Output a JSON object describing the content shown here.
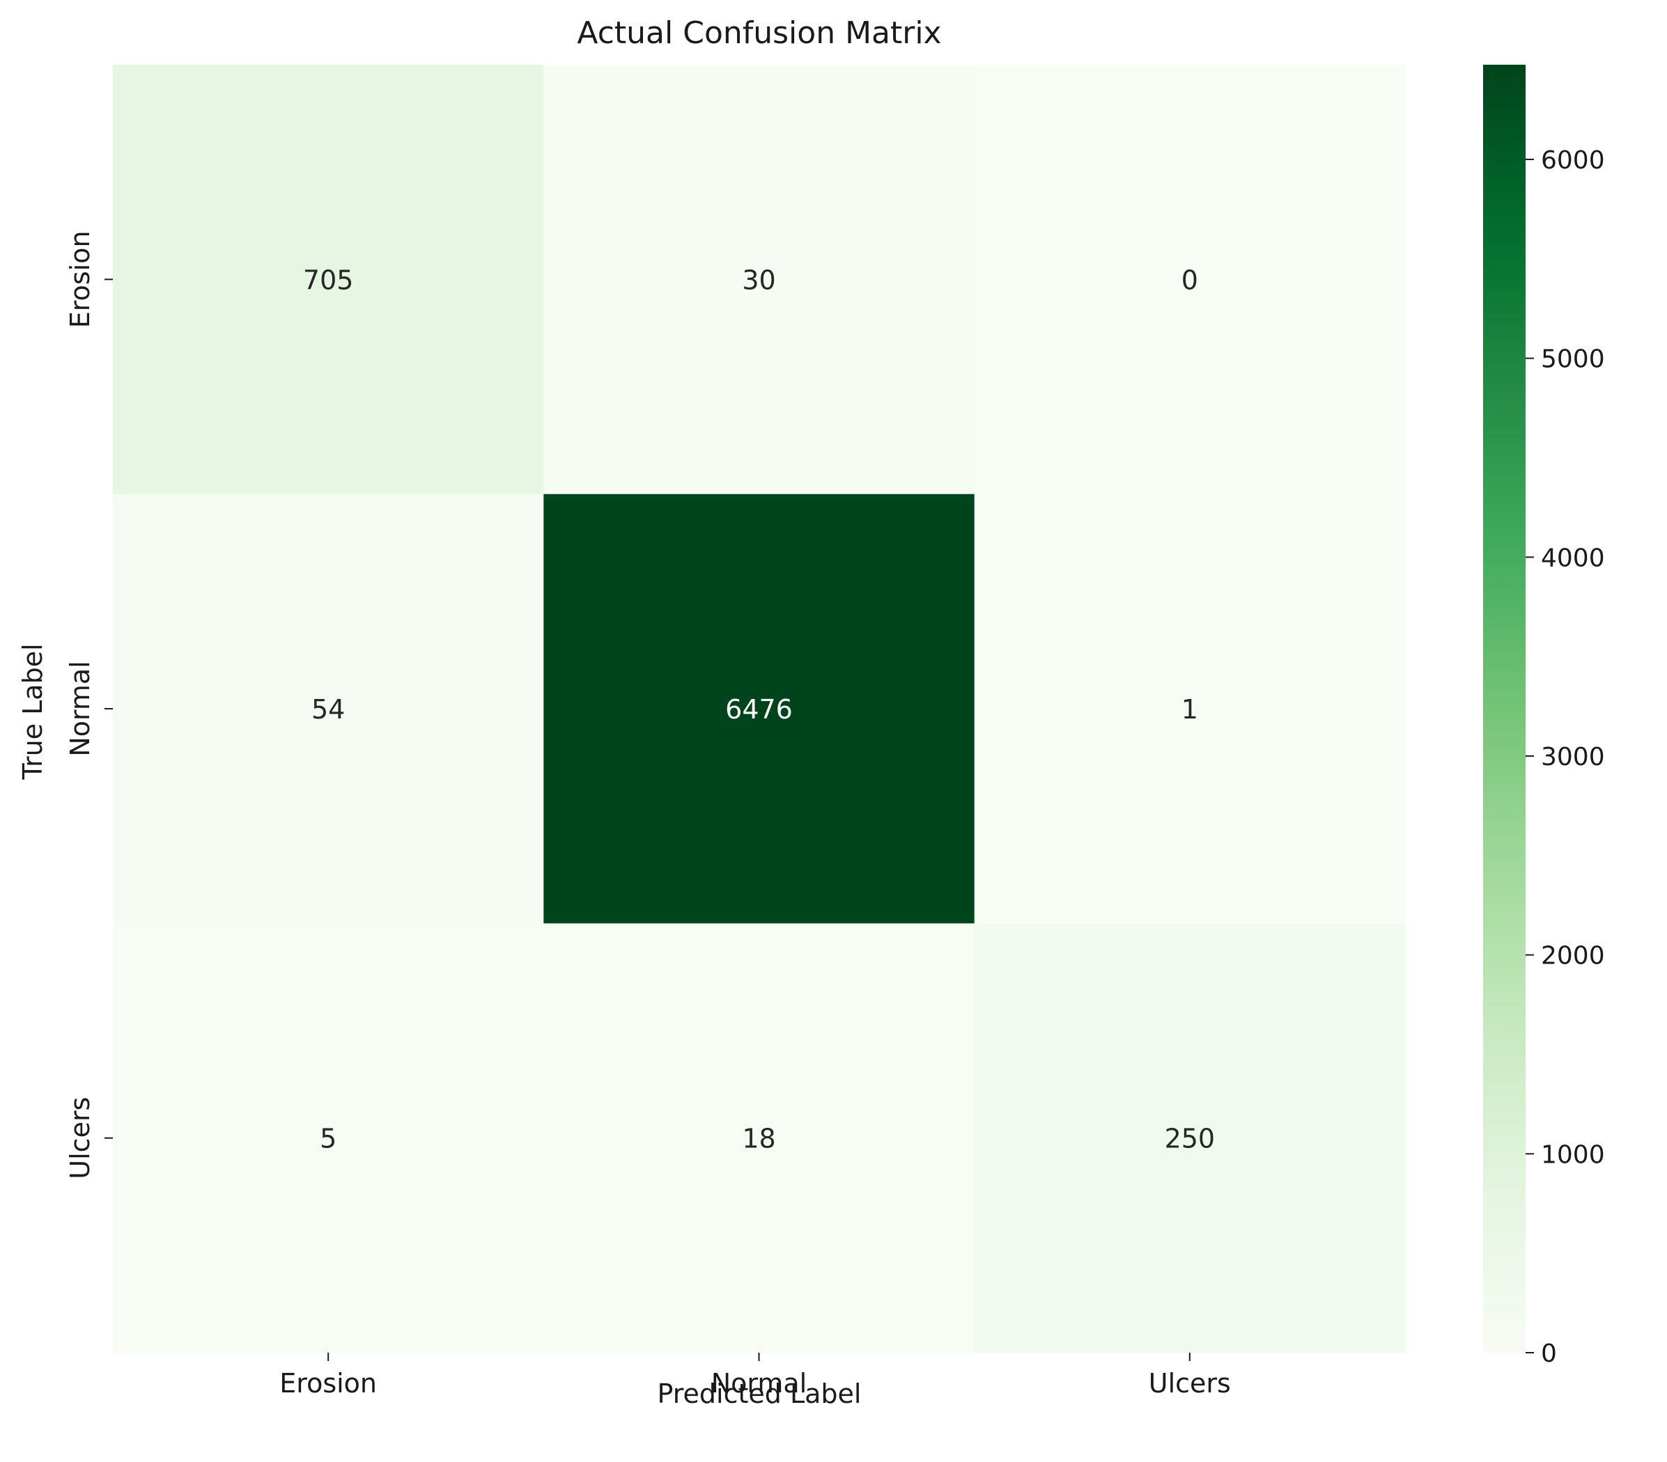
{
  "chart_data": {
    "type": "heatmap",
    "title": "Actual Confusion Matrix",
    "xlabel": "Predicted Label",
    "ylabel": "True Label",
    "x_categories": [
      "Erosion",
      "Normal",
      "Ulcers"
    ],
    "y_categories": [
      "Erosion",
      "Normal",
      "Ulcers"
    ],
    "values": [
      [
        705,
        30,
        0
      ],
      [
        54,
        6476,
        1
      ],
      [
        5,
        18,
        250
      ]
    ],
    "colormap": "Greens",
    "color_range": [
      0,
      6476
    ],
    "colorbar_ticks": [
      0,
      1000,
      2000,
      3000,
      4000,
      5000,
      6000
    ],
    "colorbar_tick_labels": [
      "0",
      "1000",
      "2000",
      "3000",
      "4000",
      "5000",
      "6000"
    ],
    "grid": false,
    "colorbar_position": "right"
  }
}
